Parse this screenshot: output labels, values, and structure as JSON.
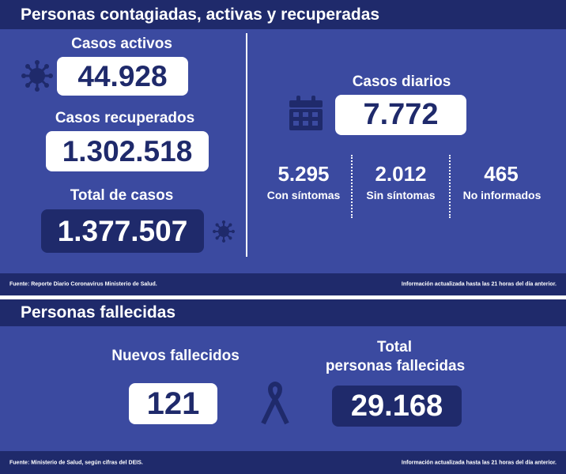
{
  "top": {
    "title": "Personas contagiadas, activas y recuperadas",
    "casos_activos": {
      "label": "Casos activos",
      "value": "44.928"
    },
    "casos_recuperados": {
      "label": "Casos recuperados",
      "value": "1.302.518"
    },
    "total_casos": {
      "label": "Total de casos",
      "value": "1.377.507"
    },
    "casos_diarios": {
      "label": "Casos diarios",
      "value": "7.772"
    },
    "breakdown": [
      {
        "value": "5.295",
        "label": "Con síntomas"
      },
      {
        "value": "2.012",
        "label": "Sin síntomas"
      },
      {
        "value": "465",
        "label": "No informados"
      }
    ],
    "footer_left": "Fuente: Reporte Diario Coronavirus Ministerio de Salud.",
    "footer_right": "Información actualizada hasta las 21 horas  del día anterior."
  },
  "bottom": {
    "title": "Personas fallecidas",
    "nuevos": {
      "label": "Nuevos fallecidos",
      "value": "121"
    },
    "total": {
      "label_line1": "Total",
      "label_line2": "personas fallecidas",
      "value": "29.168"
    },
    "footer_left": "Fuente: Ministerio de Salud, según cifras del DEIS.",
    "footer_right": "Información actualizada hasta las 21 horas  del día anterior."
  },
  "colors": {
    "panel": "#3b4aa0",
    "header": "#1f2a6b",
    "box_light": "#ffffff",
    "icon": "#1f2a6b"
  },
  "icons": [
    "virus-icon",
    "calendar-icon",
    "ribbon-icon"
  ]
}
